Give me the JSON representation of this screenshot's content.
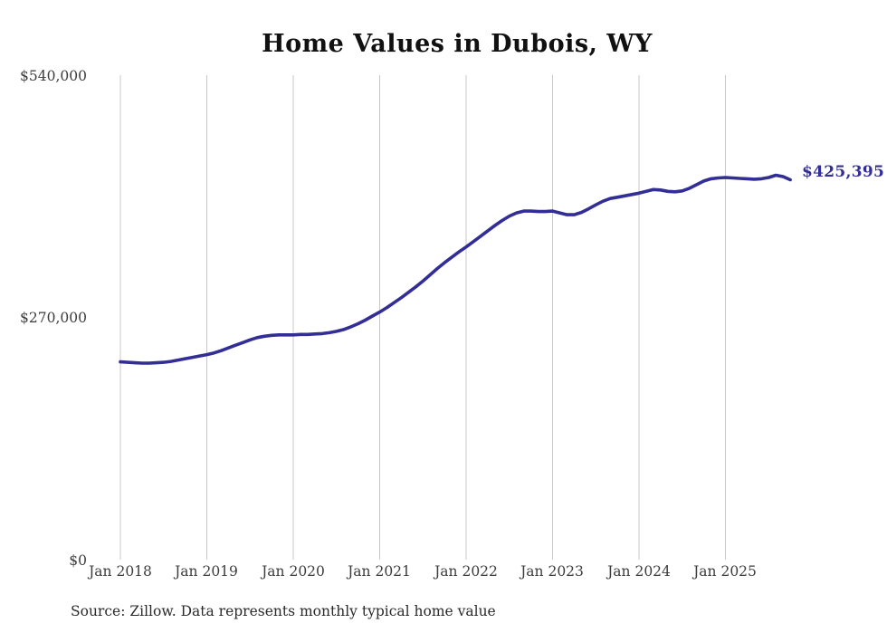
{
  "footer": {
    "source": "Source: Zillow. Data represents monthly typical home value"
  },
  "chart_data": {
    "type": "line",
    "title": "Home Values in Dubois, WY",
    "series_name": "Typical home value",
    "frequency": "monthly",
    "x_start": "2018-01",
    "x_end": "2025-10",
    "x_tick_labels": [
      "Jan 2018",
      "Jan 2019",
      "Jan 2020",
      "Jan 2021",
      "Jan 2022",
      "Jan 2023",
      "Jan 2024",
      "Jan 2025"
    ],
    "y_tick_labels": [
      "$540,000",
      "$270,000",
      "$0"
    ],
    "y_ticks": [
      540000,
      270000,
      0
    ],
    "ylim": [
      0,
      540000
    ],
    "end_label": "$425,395",
    "end_value": 425395,
    "line_color": "#332e96",
    "grid_color": "#c9c9c9",
    "grid": "vertical-only",
    "legend": "none",
    "values": [
      222500,
      222000,
      221500,
      221000,
      221000,
      221500,
      222000,
      223000,
      224500,
      226000,
      227500,
      229000,
      230500,
      232500,
      235000,
      238000,
      241000,
      244000,
      247000,
      249500,
      251000,
      252000,
      252500,
      252500,
      252500,
      253000,
      253000,
      253500,
      254000,
      255000,
      256500,
      258500,
      261500,
      265000,
      269000,
      273500,
      278000,
      283000,
      288500,
      294000,
      300000,
      306000,
      312500,
      319500,
      326500,
      333000,
      339000,
      345000,
      350500,
      356500,
      362500,
      368500,
      374500,
      380000,
      385000,
      388500,
      390500,
      390500,
      390000,
      390000,
      390500,
      388500,
      386500,
      386500,
      389000,
      393000,
      397500,
      401500,
      404500,
      406000,
      407500,
      409000,
      410500,
      412500,
      414500,
      414000,
      412500,
      412000,
      413000,
      416000,
      420000,
      424000,
      426500,
      427500,
      428000,
      427500,
      427000,
      426500,
      426000,
      426500,
      428000,
      430500,
      429000,
      425395
    ]
  }
}
